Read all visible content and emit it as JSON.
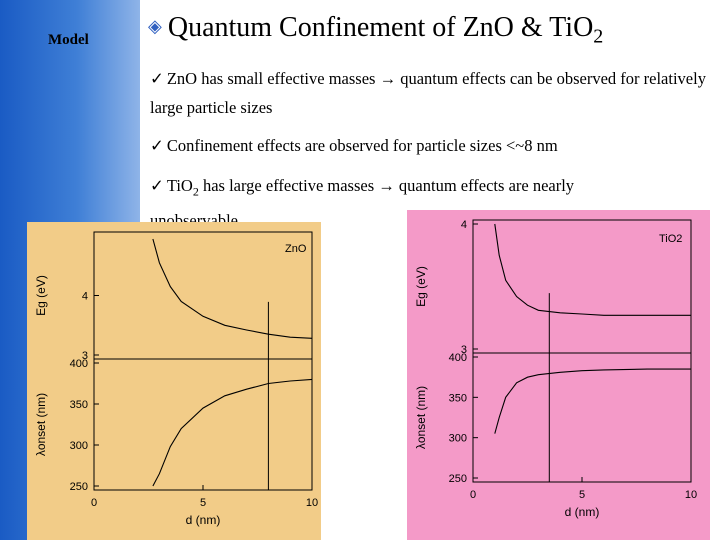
{
  "sidebar": {
    "label": "Model"
  },
  "title": {
    "main": "Quantum Confinement of ZnO & TiO",
    "sub": "2"
  },
  "bullets": [
    {
      "check": "ü",
      "pre": "ZnO has small effective masses ",
      "arrow": "→",
      "post": " quantum effects can be observed for relatively large particle sizes",
      "sub": ""
    },
    {
      "check": "ü",
      "pre": "Confinement effects are observed for particle sizes <~8 nm",
      "arrow": "",
      "post": "",
      "sub": ""
    },
    {
      "check": "ü",
      "pre": "TiO",
      "sub": "2",
      "pre2": " has large effective masses ",
      "arrow": "→",
      "post": " quantum effects are nearly unobservable"
    }
  ],
  "colors": {
    "zno_bg": "#f2cc88",
    "tio2_bg": "#f49ac8",
    "sidebar": "#2a6ad0"
  },
  "chart_data": [
    {
      "type": "line",
      "label": "ZnO",
      "xlabel": "d (nm)",
      "xlim": [
        0,
        10
      ],
      "xticks": [
        "0",
        "5",
        "10"
      ],
      "panels": [
        {
          "ylabel": "Eg (eV)",
          "ylim": [
            3,
            5
          ],
          "yticks": [
            "3",
            "4"
          ],
          "x": [
            2.7,
            3.0,
            3.5,
            4.0,
            5.0,
            6.0,
            7.0,
            8.0,
            9.0,
            10.0
          ],
          "y": [
            4.95,
            4.55,
            4.15,
            3.9,
            3.65,
            3.5,
            3.42,
            3.35,
            3.3,
            3.28
          ]
        },
        {
          "ylabel": "λonset (nm)",
          "ylim": [
            250,
            400
          ],
          "yticks": [
            "400",
            "350",
            "300",
            "250"
          ],
          "x": [
            2.7,
            3.0,
            3.5,
            4.0,
            5.0,
            6.0,
            7.0,
            8.0,
            9.0,
            10.0
          ],
          "y": [
            250,
            265,
            298,
            320,
            345,
            360,
            368,
            375,
            378,
            380
          ]
        }
      ],
      "marker_x": 8
    },
    {
      "type": "line",
      "label": "TiO2",
      "xlabel": "d (nm)",
      "xlim": [
        0,
        10
      ],
      "xticks": [
        "0",
        "5",
        "10"
      ],
      "panels": [
        {
          "ylabel": "Eg (eV)",
          "ylim": [
            3,
            4
          ],
          "yticks": [
            "4",
            "3"
          ],
          "x": [
            1.0,
            1.2,
            1.5,
            2.0,
            2.5,
            3.0,
            4.0,
            5.0,
            6.0,
            8.0,
            10.0
          ],
          "y": [
            4.0,
            3.75,
            3.55,
            3.42,
            3.35,
            3.31,
            3.29,
            3.28,
            3.27,
            3.27,
            3.27
          ]
        },
        {
          "ylabel": "λonset (nm)",
          "ylim": [
            250,
            400
          ],
          "yticks": [
            "400",
            "350",
            "300",
            "250"
          ],
          "x": [
            1.0,
            1.2,
            1.5,
            2.0,
            2.5,
            3.0,
            4.0,
            5.0,
            6.0,
            8.0,
            10.0
          ],
          "y": [
            305,
            325,
            350,
            368,
            375,
            378,
            381,
            383,
            384,
            385,
            385
          ]
        }
      ],
      "marker_x": 3.5
    }
  ]
}
